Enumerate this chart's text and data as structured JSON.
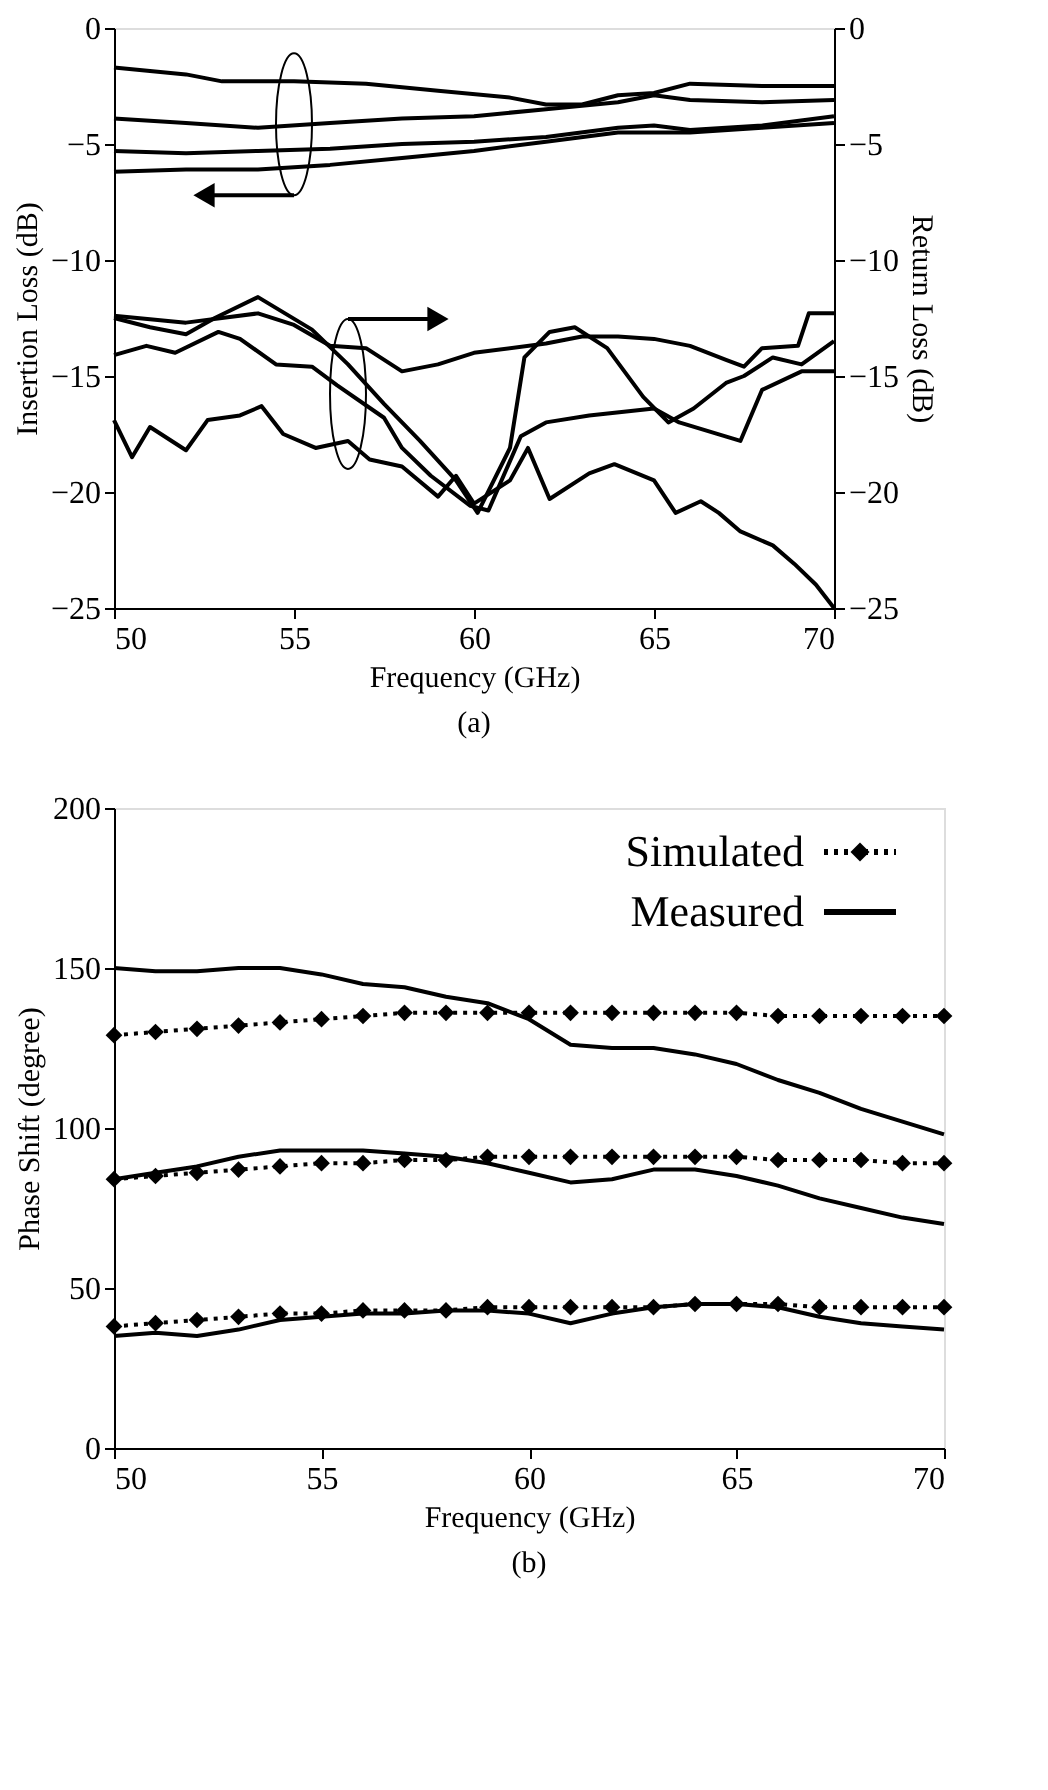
{
  "chart_data": [
    {
      "type": "line",
      "xlabel": "Frequency (GHz)",
      "ylabel": "Insertion Loss (dB)",
      "y2label": "Return Loss (dB)",
      "annotations": [
        "(a)"
      ],
      "xlim": [
        50,
        70
      ],
      "xticks": [
        50,
        55,
        60,
        65,
        70
      ],
      "ylim": [
        -25,
        0
      ],
      "yticks": [
        -25,
        -20,
        -15,
        -10,
        -5,
        0
      ],
      "y2lim": [
        -25,
        0
      ],
      "y2ticks": [
        -25,
        -20,
        -15,
        -10,
        -5,
        0
      ],
      "grid": false,
      "legend": false,
      "line_style": "solid",
      "marker": "none",
      "series": [
        {
          "color": "#000000",
          "axis": "y",
          "x": [
            50,
            52,
            53,
            55,
            57,
            59,
            61,
            62,
            63,
            64,
            65,
            66,
            68,
            70
          ],
          "values": [
            -1.7,
            -2.0,
            -2.3,
            -2.3,
            -2.4,
            -2.7,
            -3.0,
            -3.3,
            -3.3,
            -2.9,
            -2.8,
            -2.4,
            -2.5,
            -2.5
          ]
        },
        {
          "color": "#000000",
          "axis": "y",
          "x": [
            50,
            52,
            54,
            56,
            58,
            60,
            62,
            64,
            65,
            66,
            68,
            70
          ],
          "values": [
            -3.9,
            -4.1,
            -4.3,
            -4.1,
            -3.9,
            -3.8,
            -3.5,
            -3.2,
            -2.9,
            -3.1,
            -3.2,
            -3.1
          ]
        },
        {
          "color": "#000000",
          "axis": "y",
          "x": [
            50,
            52,
            54,
            56,
            58,
            60,
            62,
            64,
            65,
            66,
            68,
            70
          ],
          "values": [
            -5.3,
            -5.4,
            -5.3,
            -5.2,
            -5.0,
            -4.9,
            -4.7,
            -4.3,
            -4.2,
            -4.4,
            -4.2,
            -3.8
          ]
        },
        {
          "color": "#000000",
          "axis": "y",
          "x": [
            50,
            52,
            54,
            56,
            58,
            60,
            62,
            64,
            66,
            68,
            70
          ],
          "values": [
            -6.2,
            -6.1,
            -6.1,
            -5.9,
            -5.6,
            -5.3,
            -4.9,
            -4.5,
            -4.5,
            -4.3,
            -4.1
          ]
        },
        {
          "color": "#000000",
          "axis": "y2",
          "x": [
            50,
            50.5,
            51,
            52,
            52.6,
            53.5,
            54.1,
            54.7,
            55.6,
            56.5,
            57.1,
            58,
            59,
            59.5,
            60,
            61,
            61.5,
            62.1,
            63.2,
            63.9,
            65,
            65.6,
            66.3,
            66.8,
            67.4,
            68.3,
            68.9,
            69.5,
            70
          ],
          "values": [
            -16.9,
            -18.5,
            -17.2,
            -18.2,
            -16.9,
            -16.7,
            -16.3,
            -17.5,
            -18.1,
            -17.8,
            -18.6,
            -18.9,
            -20.2,
            -19.3,
            -20.5,
            -19.5,
            -18.1,
            -20.3,
            -19.2,
            -18.8,
            -19.5,
            -20.9,
            -20.4,
            -20.9,
            -21.7,
            -22.3,
            -23.1,
            -24.0,
            -25
          ]
        },
        {
          "color": "#000000",
          "axis": "y2",
          "x": [
            50,
            51,
            52,
            52.8,
            54,
            55.5,
            56.5,
            57.5,
            58.5,
            59.5,
            60.1,
            61,
            61.4,
            62.1,
            62.8,
            63.7,
            64.7,
            65.4,
            66.1,
            67,
            67.5,
            68.3,
            69.1,
            70
          ],
          "values": [
            -12.5,
            -12.9,
            -13.2,
            -12.5,
            -11.6,
            -13.0,
            -14.5,
            -16.2,
            -17.8,
            -19.5,
            -20.9,
            -18.1,
            -14.2,
            -13.1,
            -12.9,
            -13.8,
            -15.9,
            -17.0,
            -16.4,
            -15.3,
            -15.0,
            -14.2,
            -14.5,
            -13.5
          ]
        },
        {
          "color": "#000000",
          "axis": "y2",
          "x": [
            50,
            52,
            54,
            55,
            56,
            57,
            58,
            59,
            60,
            62,
            63,
            64,
            65,
            66,
            67,
            67.5,
            68,
            69,
            69.3,
            70
          ],
          "values": [
            -12.4,
            -12.7,
            -12.3,
            -12.8,
            -13.7,
            -13.8,
            -14.8,
            -14.5,
            -14.0,
            -13.6,
            -13.3,
            -13.3,
            -13.4,
            -13.7,
            -14.3,
            -14.6,
            -13.8,
            -13.7,
            -12.3,
            -12.3
          ]
        },
        {
          "color": "#000000",
          "axis": "y2",
          "x": [
            50,
            50.9,
            51.7,
            52.9,
            53.5,
            54.5,
            55.5,
            56.2,
            57.5,
            58,
            58.8,
            59.9,
            60.4,
            61.3,
            62,
            63.2,
            65,
            65.7,
            67.4,
            68,
            69.1,
            70
          ],
          "values": [
            -14.1,
            -13.7,
            -14.0,
            -13.1,
            -13.4,
            -14.5,
            -14.6,
            -15.4,
            -16.8,
            -18.1,
            -19.3,
            -20.6,
            -20.8,
            -17.6,
            -17.0,
            -16.7,
            -16.4,
            -17.0,
            -17.8,
            -15.6,
            -14.8,
            -14.8
          ]
        }
      ]
    },
    {
      "type": "line",
      "xlabel": "Frequency (GHz)",
      "ylabel": "Phase Shift (degree)",
      "annotations": [
        "(b)"
      ],
      "xlim": [
        50,
        70
      ],
      "xticks": [
        50,
        55,
        60,
        65,
        70
      ],
      "ylim": [
        0,
        200
      ],
      "yticks": [
        0,
        50,
        100,
        150,
        200
      ],
      "grid": false,
      "legend": "top right",
      "x": [
        50,
        51,
        52,
        53,
        54,
        55,
        56,
        57,
        58,
        59,
        60,
        61,
        62,
        63,
        64,
        65,
        66,
        67,
        68,
        69,
        70
      ],
      "series": [
        {
          "name": "Simulated",
          "color": "#000000",
          "line_style": "dotted",
          "marker": "diamond",
          "values": [
            129,
            130,
            131,
            132,
            133,
            134,
            135,
            136,
            136,
            136,
            136,
            136,
            136,
            136,
            136,
            136,
            135,
            135,
            135,
            135,
            135
          ]
        },
        {
          "name": "Measured",
          "color": "#000000",
          "line_style": "solid",
          "marker": "none",
          "values": [
            150,
            149,
            149,
            150,
            150,
            148,
            145,
            144,
            141,
            139,
            134,
            126,
            125,
            125,
            123,
            120,
            115,
            111,
            106,
            102,
            98
          ]
        },
        {
          "color": "#000000",
          "line_style": "dotted",
          "marker": "diamond",
          "values": [
            84,
            85,
            86,
            87,
            88,
            89,
            89,
            90,
            90,
            91,
            91,
            91,
            91,
            91,
            91,
            91,
            90,
            90,
            90,
            89,
            89
          ]
        },
        {
          "color": "#000000",
          "line_style": "solid",
          "marker": "none",
          "values": [
            84,
            86,
            88,
            91,
            93,
            93,
            93,
            92,
            91,
            89,
            86,
            83,
            84,
            87,
            87,
            85,
            82,
            78,
            75,
            72,
            70
          ]
        },
        {
          "color": "#000000",
          "line_style": "dotted",
          "marker": "diamond",
          "values": [
            38,
            39,
            40,
            41,
            42,
            42,
            43,
            43,
            43,
            44,
            44,
            44,
            44,
            44,
            45,
            45,
            45,
            44,
            44,
            44,
            44
          ]
        },
        {
          "color": "#000000",
          "line_style": "solid",
          "marker": "none",
          "values": [
            35,
            36,
            35,
            37,
            40,
            41,
            42,
            42,
            43,
            43,
            42,
            39,
            42,
            44,
            45,
            45,
            44,
            41,
            39,
            38,
            37
          ]
        }
      ]
    }
  ]
}
